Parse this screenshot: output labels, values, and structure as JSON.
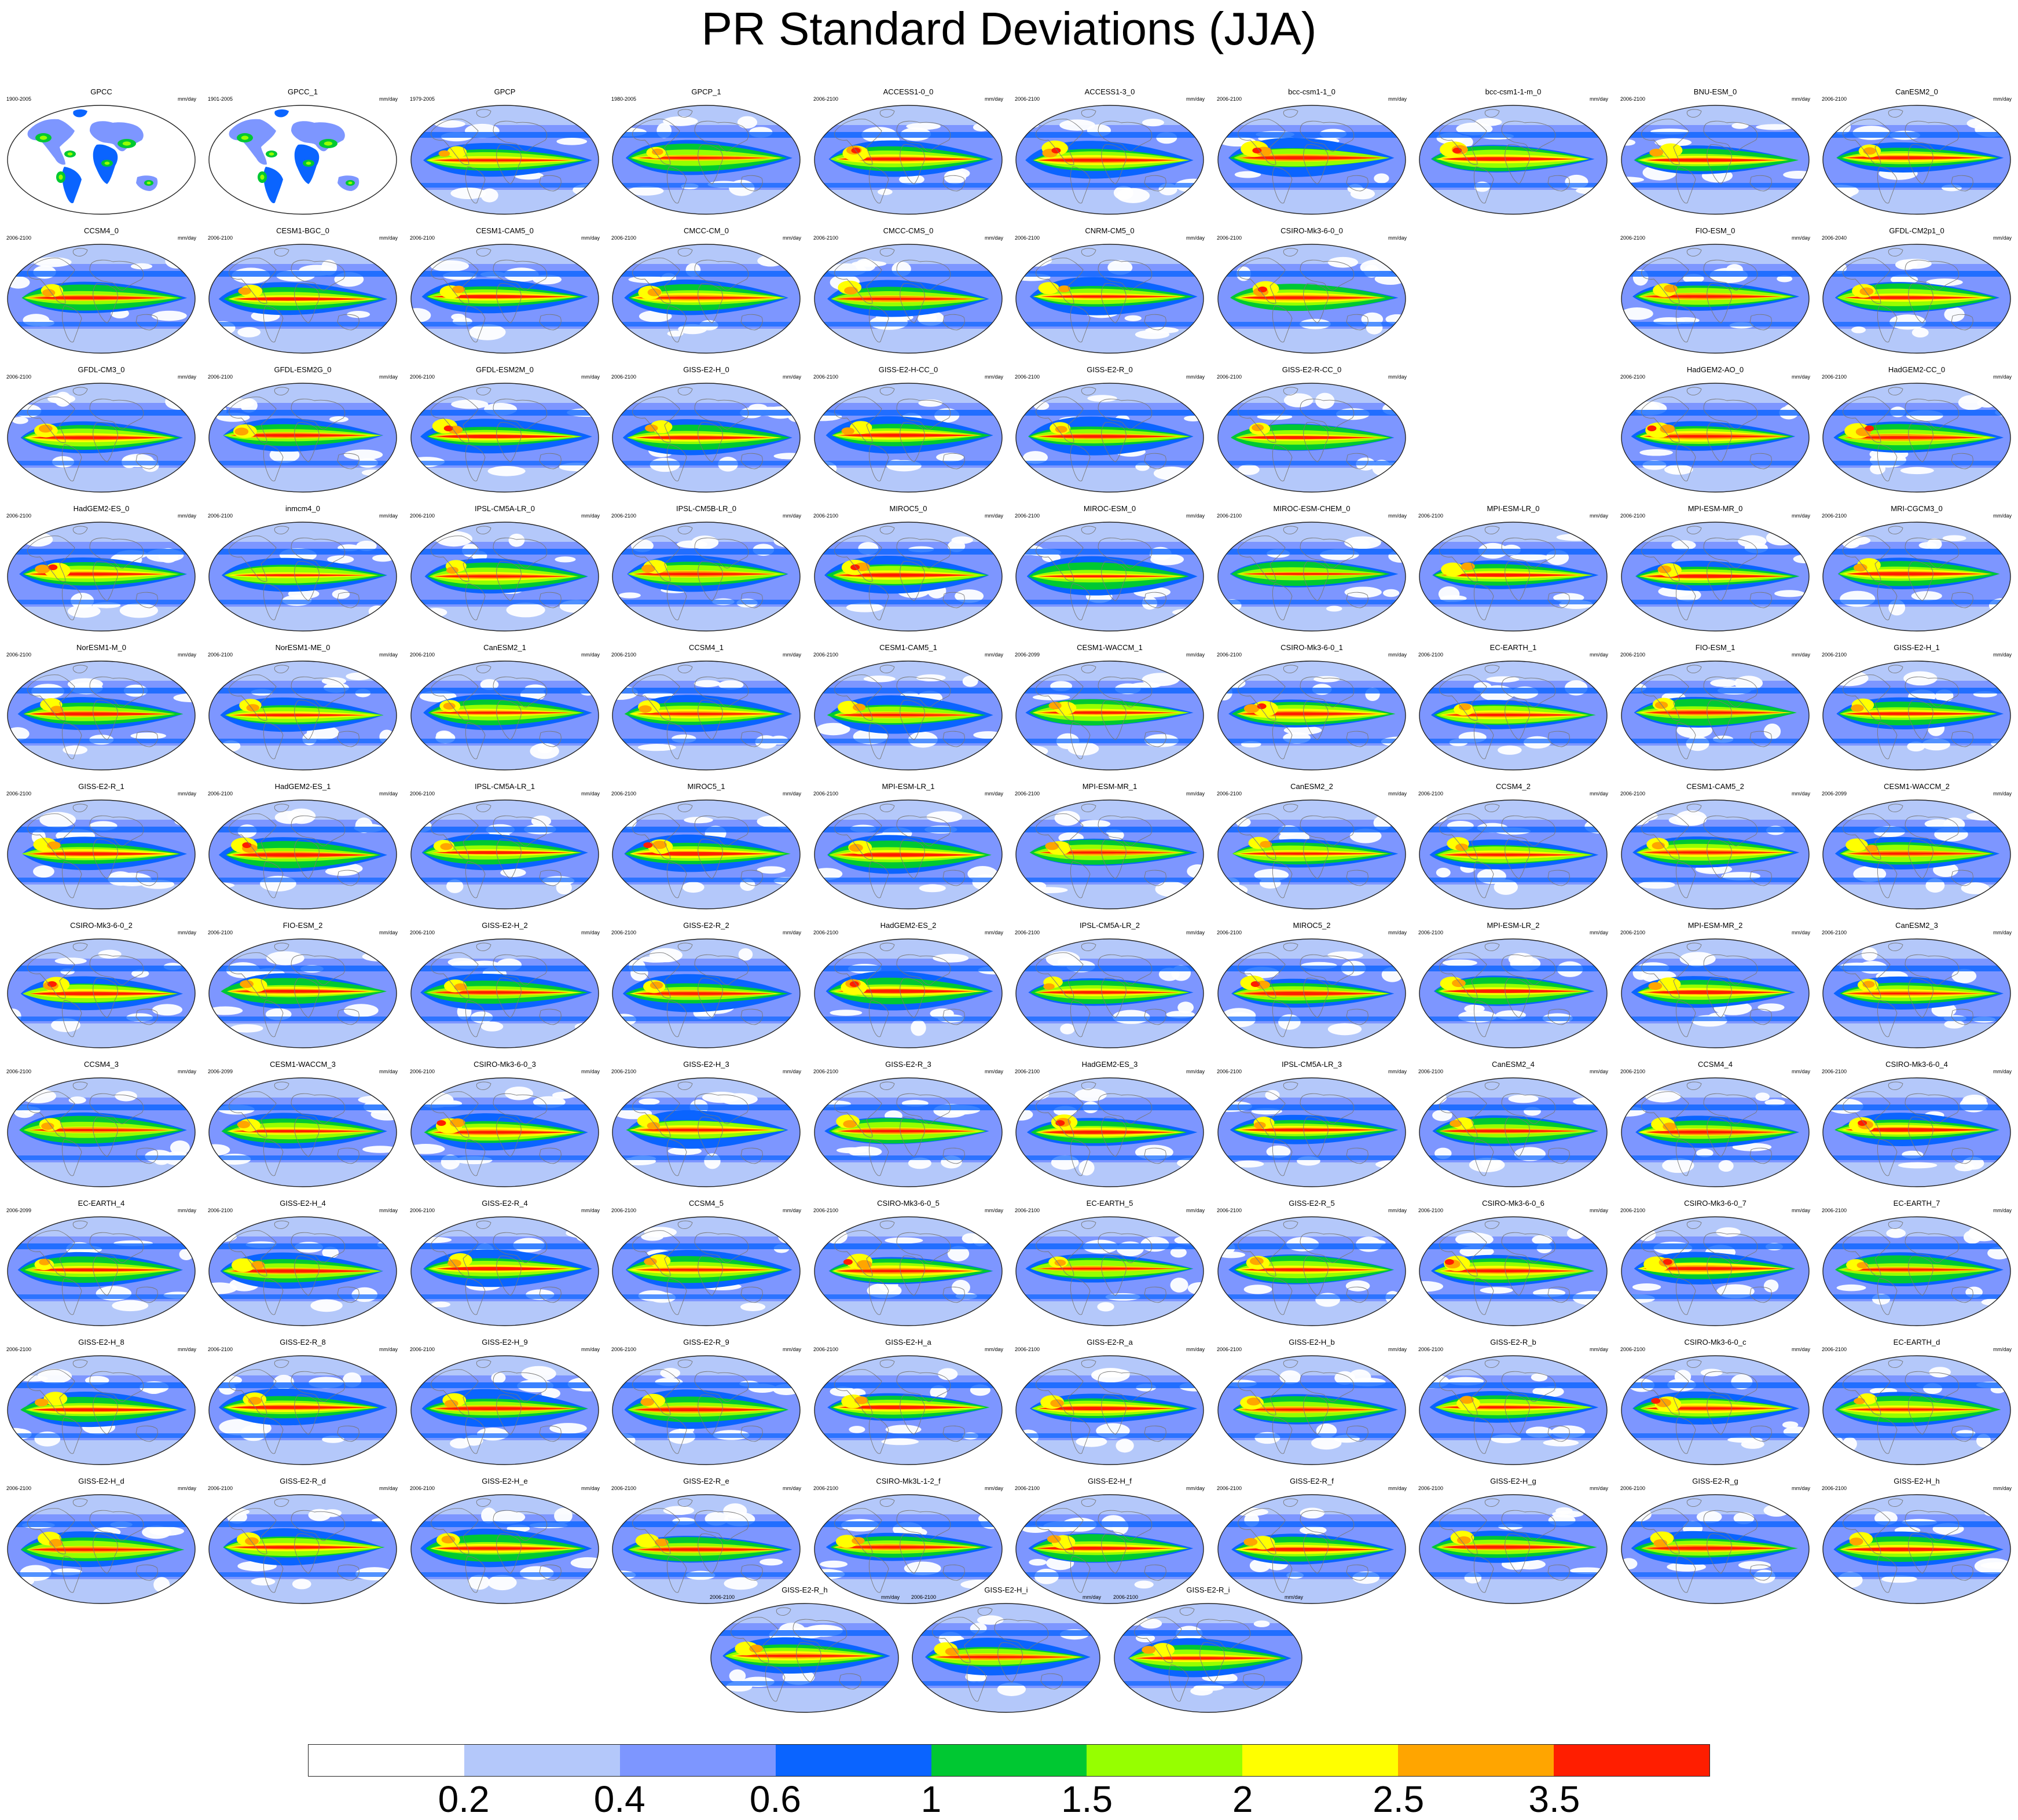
{
  "title": "PR Standard Deviations (JJA)",
  "units": "mm/day",
  "colors": {
    "levels": [
      "#ffffff",
      "#b4c8fa",
      "#7d96ff",
      "#0a64ff",
      "#00c832",
      "#96ff00",
      "#ffff00",
      "#ffa500",
      "#ff1e00"
    ],
    "land_outline": "#777777",
    "frame": "#222222"
  },
  "colorbar": {
    "ticks": [
      "0.2",
      "0.4",
      "0.6",
      "1",
      "1.5",
      "2",
      "2.5",
      "3.5"
    ]
  },
  "panels": [
    {
      "title": "GPCC",
      "years": "1900-2005",
      "units": "mm/day",
      "kind": "obs_land",
      "intensity": 0.6
    },
    {
      "title": "GPCC_1",
      "years": "1901-2005",
      "units": "mm/day",
      "kind": "obs_land",
      "intensity": 0.6
    },
    {
      "title": "GPCP",
      "years": "1979-2005",
      "units": "",
      "kind": "full",
      "intensity": 0.7
    },
    {
      "title": "GPCP_1",
      "years": "1980-2005",
      "units": "",
      "kind": "full",
      "intensity": 0.7
    },
    {
      "title": "ACCESS1-0_0",
      "years": "2006-2100",
      "units": "mm/day",
      "kind": "full",
      "intensity": 0.95
    },
    {
      "title": "ACCESS1-3_0",
      "years": "2006-2100",
      "units": "mm/day",
      "kind": "full",
      "intensity": 0.95
    },
    {
      "title": "bcc-csm1-1_0",
      "years": "2006-2100",
      "units": "mm/day",
      "kind": "full",
      "intensity": 1.0
    },
    {
      "title": "bcc-csm1-1-m_0",
      "years": "",
      "units": "mm/day",
      "kind": "full",
      "intensity": 1.0
    },
    {
      "title": "BNU-ESM_0",
      "years": "2006-2100",
      "units": "mm/day",
      "kind": "full",
      "intensity": 0.85
    },
    {
      "title": "CanESM2_0",
      "years": "2006-2100",
      "units": "mm/day",
      "kind": "full",
      "intensity": 0.8
    },
    {
      "title": "CCSM4_0",
      "years": "2006-2100",
      "units": "mm/day",
      "kind": "full",
      "intensity": 0.8
    },
    {
      "title": "CESM1-BGC_0",
      "years": "2006-2100",
      "units": "mm/day",
      "kind": "full",
      "intensity": 0.8
    },
    {
      "title": "CESM1-CAM5_0",
      "years": "2006-2100",
      "units": "mm/day",
      "kind": "full",
      "intensity": 0.8
    },
    {
      "title": "CMCC-CM_0",
      "years": "2006-2100",
      "units": "mm/day",
      "kind": "full",
      "intensity": 0.85
    },
    {
      "title": "CMCC-CMS_0",
      "years": "2006-2100",
      "units": "mm/day",
      "kind": "full",
      "intensity": 0.85
    },
    {
      "title": "CNRM-CM5_0",
      "years": "2006-2100",
      "units": "mm/day",
      "kind": "full",
      "intensity": 0.75
    },
    {
      "title": "CSIRO-Mk3-6-0_0",
      "years": "2006-2100",
      "units": "mm/day",
      "kind": "full",
      "intensity": 0.95
    },
    {
      "title": "",
      "years": "",
      "units": "",
      "kind": "empty",
      "intensity": 0
    },
    {
      "title": "FIO-ESM_0",
      "years": "2006-2100",
      "units": "mm/day",
      "kind": "full",
      "intensity": 0.85
    },
    {
      "title": "GFDL-CM2p1_0",
      "years": "2006-2040",
      "units": "mm/day",
      "kind": "full",
      "intensity": 0.85
    },
    {
      "title": "GFDL-CM3_0",
      "years": "2006-2100",
      "units": "mm/day",
      "kind": "full",
      "intensity": 0.85
    },
    {
      "title": "GFDL-ESM2G_0",
      "years": "2006-2100",
      "units": "mm/day",
      "kind": "full",
      "intensity": 0.85
    },
    {
      "title": "GFDL-ESM2M_0",
      "years": "2006-2100",
      "units": "mm/day",
      "kind": "full",
      "intensity": 0.9
    },
    {
      "title": "GISS-E2-H_0",
      "years": "2006-2100",
      "units": "mm/day",
      "kind": "full",
      "intensity": 0.8
    },
    {
      "title": "GISS-E2-H-CC_0",
      "years": "2006-2100",
      "units": "mm/day",
      "kind": "full",
      "intensity": 0.8
    },
    {
      "title": "GISS-E2-R_0",
      "years": "2006-2100",
      "units": "mm/day",
      "kind": "full",
      "intensity": 0.75
    },
    {
      "title": "GISS-E2-R-CC_0",
      "years": "2006-2100",
      "units": "mm/day",
      "kind": "full",
      "intensity": 0.75
    },
    {
      "title": "",
      "years": "",
      "units": "",
      "kind": "empty",
      "intensity": 0
    },
    {
      "title": "HadGEM2-AO_0",
      "years": "2006-2100",
      "units": "mm/day",
      "kind": "full",
      "intensity": 0.95
    },
    {
      "title": "HadGEM2-CC_0",
      "years": "2006-2100",
      "units": "mm/day",
      "kind": "full",
      "intensity": 0.95
    },
    {
      "title": "HadGEM2-ES_0",
      "years": "2006-2100",
      "units": "mm/day",
      "kind": "full",
      "intensity": 0.95
    },
    {
      "title": "inmcm4_0",
      "years": "2006-2100",
      "units": "mm/day",
      "kind": "full",
      "intensity": 0.55
    },
    {
      "title": "IPSL-CM5A-LR_0",
      "years": "2006-2100",
      "units": "mm/day",
      "kind": "full",
      "intensity": 0.75
    },
    {
      "title": "IPSL-CM5B-LR_0",
      "years": "2006-2100",
      "units": "mm/day",
      "kind": "full",
      "intensity": 0.85
    },
    {
      "title": "MIROC5_0",
      "years": "2006-2100",
      "units": "mm/day",
      "kind": "full",
      "intensity": 0.95
    },
    {
      "title": "MIROC-ESM_0",
      "years": "2006-2100",
      "units": "mm/day",
      "kind": "full",
      "intensity": 0.55
    },
    {
      "title": "MIROC-ESM-CHEM_0",
      "years": "2006-2100",
      "units": "mm/day",
      "kind": "full",
      "intensity": 0.55
    },
    {
      "title": "MPI-ESM-LR_0",
      "years": "2006-2100",
      "units": "mm/day",
      "kind": "full",
      "intensity": 0.85
    },
    {
      "title": "MPI-ESM-MR_0",
      "years": "2006-2100",
      "units": "mm/day",
      "kind": "full",
      "intensity": 0.85
    },
    {
      "title": "MRI-CGCM3_0",
      "years": "2006-2100",
      "units": "mm/day",
      "kind": "full",
      "intensity": 0.85
    },
    {
      "title": "NorESM1-M_0",
      "years": "2006-2100",
      "units": "mm/day",
      "kind": "full",
      "intensity": 0.8
    },
    {
      "title": "NorESM1-ME_0",
      "years": "2006-2100",
      "units": "mm/day",
      "kind": "full",
      "intensity": 0.8
    },
    {
      "title": "CanESM2_1",
      "years": "2006-2100",
      "units": "mm/day",
      "kind": "full",
      "intensity": 0.75
    },
    {
      "title": "CCSM4_1",
      "years": "2006-2100",
      "units": "mm/day",
      "kind": "full",
      "intensity": 0.8
    },
    {
      "title": "CESM1-CAM5_1",
      "years": "2006-2100",
      "units": "mm/day",
      "kind": "full",
      "intensity": 0.8
    },
    {
      "title": "CESM1-WACCM_1",
      "years": "2006-2099",
      "units": "mm/day",
      "kind": "full",
      "intensity": 0.8
    },
    {
      "title": "CSIRO-Mk3-6-0_1",
      "years": "2006-2100",
      "units": "mm/day",
      "kind": "full",
      "intensity": 0.95
    },
    {
      "title": "EC-EARTH_1",
      "years": "2006-2100",
      "units": "mm/day",
      "kind": "full",
      "intensity": 0.75
    },
    {
      "title": "FIO-ESM_1",
      "years": "2006-2100",
      "units": "mm/day",
      "kind": "full",
      "intensity": 0.8
    },
    {
      "title": "GISS-E2-H_1",
      "years": "2006-2100",
      "units": "mm/day",
      "kind": "full",
      "intensity": 0.8
    },
    {
      "title": "GISS-E2-R_1",
      "years": "2006-2100",
      "units": "mm/day",
      "kind": "full",
      "intensity": 0.85
    },
    {
      "title": "HadGEM2-ES_1",
      "years": "2006-2100",
      "units": "mm/day",
      "kind": "full",
      "intensity": 0.95
    },
    {
      "title": "IPSL-CM5A-LR_1",
      "years": "2006-2100",
      "units": "mm/day",
      "kind": "full",
      "intensity": 0.75
    },
    {
      "title": "MIROC5_1",
      "years": "2006-2100",
      "units": "mm/day",
      "kind": "full",
      "intensity": 0.9
    },
    {
      "title": "MPI-ESM-LR_1",
      "years": "2006-2100",
      "units": "mm/day",
      "kind": "full",
      "intensity": 0.85
    },
    {
      "title": "MPI-ESM-MR_1",
      "years": "2006-2100",
      "units": "mm/day",
      "kind": "full",
      "intensity": 0.85
    },
    {
      "title": "CanESM2_2",
      "years": "2006-2100",
      "units": "mm/day",
      "kind": "full",
      "intensity": 0.75
    },
    {
      "title": "CCSM4_2",
      "years": "2006-2100",
      "units": "mm/day",
      "kind": "full",
      "intensity": 0.8
    },
    {
      "title": "CESM1-CAM5_2",
      "years": "2006-2100",
      "units": "mm/day",
      "kind": "full",
      "intensity": 0.8
    },
    {
      "title": "CESM1-WACCM_2",
      "years": "2006-2099",
      "units": "mm/day",
      "kind": "full",
      "intensity": 0.8
    },
    {
      "title": "CSIRO-Mk3-6-0_2",
      "years": "",
      "units": "mm/day",
      "kind": "full",
      "intensity": 0.95
    },
    {
      "title": "FIO-ESM_2",
      "years": "2006-2100",
      "units": "mm/day",
      "kind": "full",
      "intensity": 0.85
    },
    {
      "title": "GISS-E2-H_2",
      "years": "2006-2100",
      "units": "mm/day",
      "kind": "full",
      "intensity": 0.8
    },
    {
      "title": "GISS-E2-R_2",
      "years": "2006-2100",
      "units": "mm/day",
      "kind": "full",
      "intensity": 0.8
    },
    {
      "title": "HadGEM2-ES_2",
      "years": "2006-2100",
      "units": "mm/day",
      "kind": "full",
      "intensity": 0.95
    },
    {
      "title": "IPSL-CM5A-LR_2",
      "years": "2006-2100",
      "units": "mm/day",
      "kind": "full",
      "intensity": 0.7
    },
    {
      "title": "MIROC5_2",
      "years": "2006-2100",
      "units": "mm/day",
      "kind": "full",
      "intensity": 0.9
    },
    {
      "title": "MPI-ESM-LR_2",
      "years": "2006-2100",
      "units": "mm/day",
      "kind": "full",
      "intensity": 0.85
    },
    {
      "title": "MPI-ESM-MR_2",
      "years": "2006-2100",
      "units": "mm/day",
      "kind": "full",
      "intensity": 0.85
    },
    {
      "title": "CanESM2_3",
      "years": "2006-2100",
      "units": "mm/day",
      "kind": "full",
      "intensity": 0.75
    },
    {
      "title": "CCSM4_3",
      "years": "2006-2100",
      "units": "mm/day",
      "kind": "full",
      "intensity": 0.8
    },
    {
      "title": "CESM1-WACCM_3",
      "years": "2006-2099",
      "units": "mm/day",
      "kind": "full",
      "intensity": 0.8
    },
    {
      "title": "CSIRO-Mk3-6-0_3",
      "years": "2006-2100",
      "units": "mm/day",
      "kind": "full",
      "intensity": 0.95
    },
    {
      "title": "GISS-E2-H_3",
      "years": "2006-2100",
      "units": "mm/day",
      "kind": "full",
      "intensity": 0.8
    },
    {
      "title": "GISS-E2-R_3",
      "years": "2006-2100",
      "units": "mm/day",
      "kind": "full",
      "intensity": 0.85
    },
    {
      "title": "HadGEM2-ES_3",
      "years": "2006-2100",
      "units": "mm/day",
      "kind": "full",
      "intensity": 0.95
    },
    {
      "title": "IPSL-CM5A-LR_3",
      "years": "2006-2100",
      "units": "mm/day",
      "kind": "full",
      "intensity": 0.75
    },
    {
      "title": "CanESM2_4",
      "years": "2006-2100",
      "units": "mm/day",
      "kind": "full",
      "intensity": 0.75
    },
    {
      "title": "CCSM4_4",
      "years": "2006-2100",
      "units": "mm/day",
      "kind": "full",
      "intensity": 0.85
    },
    {
      "title": "CSIRO-Mk3-6-0_4",
      "years": "2006-2100",
      "units": "mm/day",
      "kind": "full",
      "intensity": 0.95
    },
    {
      "title": "EC-EARTH_4",
      "years": "2006-2099",
      "units": "mm/day",
      "kind": "full",
      "intensity": 0.7
    },
    {
      "title": "GISS-E2-H_4",
      "years": "2006-2100",
      "units": "mm/day",
      "kind": "full",
      "intensity": 0.85
    },
    {
      "title": "GISS-E2-R_4",
      "years": "2006-2100",
      "units": "mm/day",
      "kind": "full",
      "intensity": 0.85
    },
    {
      "title": "CCSM4_5",
      "years": "2006-2100",
      "units": "mm/day",
      "kind": "full",
      "intensity": 0.8
    },
    {
      "title": "CSIRO-Mk3-6-0_5",
      "years": "2006-2100",
      "units": "mm/day",
      "kind": "full",
      "intensity": 0.95
    },
    {
      "title": "EC-EARTH_5",
      "years": "2006-2100",
      "units": "mm/day",
      "kind": "full",
      "intensity": 0.7
    },
    {
      "title": "GISS-E2-R_5",
      "years": "2006-2100",
      "units": "mm/day",
      "kind": "full",
      "intensity": 0.85
    },
    {
      "title": "CSIRO-Mk3-6-0_6",
      "years": "2006-2100",
      "units": "mm/day",
      "kind": "full",
      "intensity": 0.95
    },
    {
      "title": "CSIRO-Mk3-6-0_7",
      "years": "2006-2100",
      "units": "mm/day",
      "kind": "full",
      "intensity": 0.95
    },
    {
      "title": "EC-EARTH_7",
      "years": "2006-2100",
      "units": "mm/day",
      "kind": "full",
      "intensity": 0.7
    },
    {
      "title": "GISS-E2-H_8",
      "years": "2006-2100",
      "units": "mm/day",
      "kind": "full",
      "intensity": 0.85
    },
    {
      "title": "GISS-E2-R_8",
      "years": "2006-2100",
      "units": "mm/day",
      "kind": "full",
      "intensity": 0.85
    },
    {
      "title": "GISS-E2-H_9",
      "years": "2006-2100",
      "units": "mm/day",
      "kind": "full",
      "intensity": 0.85
    },
    {
      "title": "GISS-E2-R_9",
      "years": "2006-2100",
      "units": "mm/day",
      "kind": "full",
      "intensity": 0.85
    },
    {
      "title": "GISS-E2-H_a",
      "years": "2006-2100",
      "units": "mm/day",
      "kind": "full",
      "intensity": 0.85
    },
    {
      "title": "GISS-E2-R_a",
      "years": "2006-2100",
      "units": "mm/day",
      "kind": "full",
      "intensity": 0.85
    },
    {
      "title": "GISS-E2-H_b",
      "years": "2006-2100",
      "units": "mm/day",
      "kind": "full",
      "intensity": 0.85
    },
    {
      "title": "GISS-E2-R_b",
      "years": "2006-2100",
      "units": "mm/day",
      "kind": "full",
      "intensity": 0.85
    },
    {
      "title": "CSIRO-Mk3-6-0_c",
      "years": "2006-2100",
      "units": "mm/day",
      "kind": "full",
      "intensity": 0.95
    },
    {
      "title": "EC-EARTH_d",
      "years": "2006-2100",
      "units": "mm/day",
      "kind": "full",
      "intensity": 0.7
    },
    {
      "title": "GISS-E2-H_d",
      "years": "2006-2100",
      "units": "mm/day",
      "kind": "full",
      "intensity": 0.85
    },
    {
      "title": "GISS-E2-R_d",
      "years": "2006-2100",
      "units": "mm/day",
      "kind": "full",
      "intensity": 0.85
    },
    {
      "title": "GISS-E2-H_e",
      "years": "2006-2100",
      "units": "mm/day",
      "kind": "full",
      "intensity": 0.85
    },
    {
      "title": "GISS-E2-R_e",
      "years": "2006-2100",
      "units": "mm/day",
      "kind": "full",
      "intensity": 0.85
    },
    {
      "title": "CSIRO-Mk3L-1-2_f",
      "years": "2006-2100",
      "units": "mm/day",
      "kind": "full",
      "intensity": 0.8
    },
    {
      "title": "GISS-E2-H_f",
      "years": "2006-2100",
      "units": "mm/day",
      "kind": "full",
      "intensity": 0.85
    },
    {
      "title": "GISS-E2-R_f",
      "years": "2006-2100",
      "units": "mm/day",
      "kind": "full",
      "intensity": 0.85
    },
    {
      "title": "GISS-E2-H_g",
      "years": "2006-2100",
      "units": "mm/day",
      "kind": "full",
      "intensity": 0.85
    },
    {
      "title": "GISS-E2-R_g",
      "years": "2006-2100",
      "units": "mm/day",
      "kind": "full",
      "intensity": 0.85
    },
    {
      "title": "GISS-E2-H_h",
      "years": "2006-2100",
      "units": "mm/day",
      "kind": "full",
      "intensity": 0.85
    },
    {
      "title": "GISS-E2-R_h",
      "years": "2006-2100",
      "units": "mm/day",
      "kind": "full",
      "intensity": 0.85
    },
    {
      "title": "GISS-E2-H_i",
      "years": "2006-2100",
      "units": "mm/day",
      "kind": "full",
      "intensity": 0.85
    },
    {
      "title": "GISS-E2-R_i",
      "years": "2006-2100",
      "units": "mm/day",
      "kind": "full",
      "intensity": 0.85
    }
  ]
}
